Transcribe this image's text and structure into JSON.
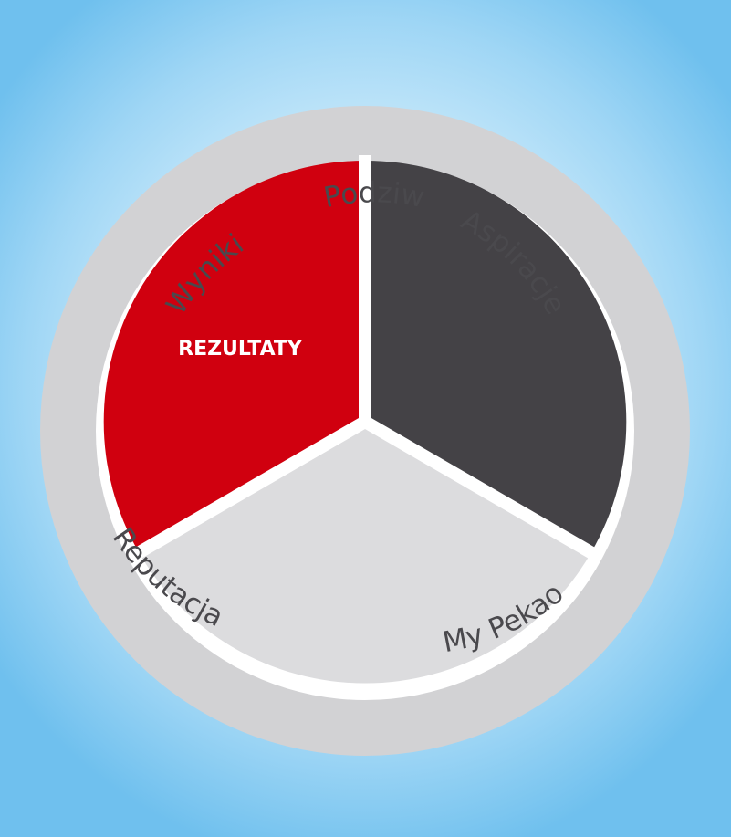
{
  "diagram": {
    "segments": [
      {
        "name": "red-segment",
        "label": "REZULTATY",
        "color": "#d0000f"
      },
      {
        "name": "dark-segment",
        "label": "",
        "color": "#444246"
      },
      {
        "name": "light-segment",
        "label": "",
        "color": "#dcdcde"
      }
    ],
    "ring": {
      "color": "#d2d2d4",
      "labels": {
        "top": "Podziw",
        "upper_right": "Aspiracje",
        "lower_right": "My Pekao",
        "lower_left": "Reputacja",
        "upper_left": "Wyniki"
      }
    },
    "separator_color": "#ffffff",
    "label_color": "#4a494d"
  }
}
